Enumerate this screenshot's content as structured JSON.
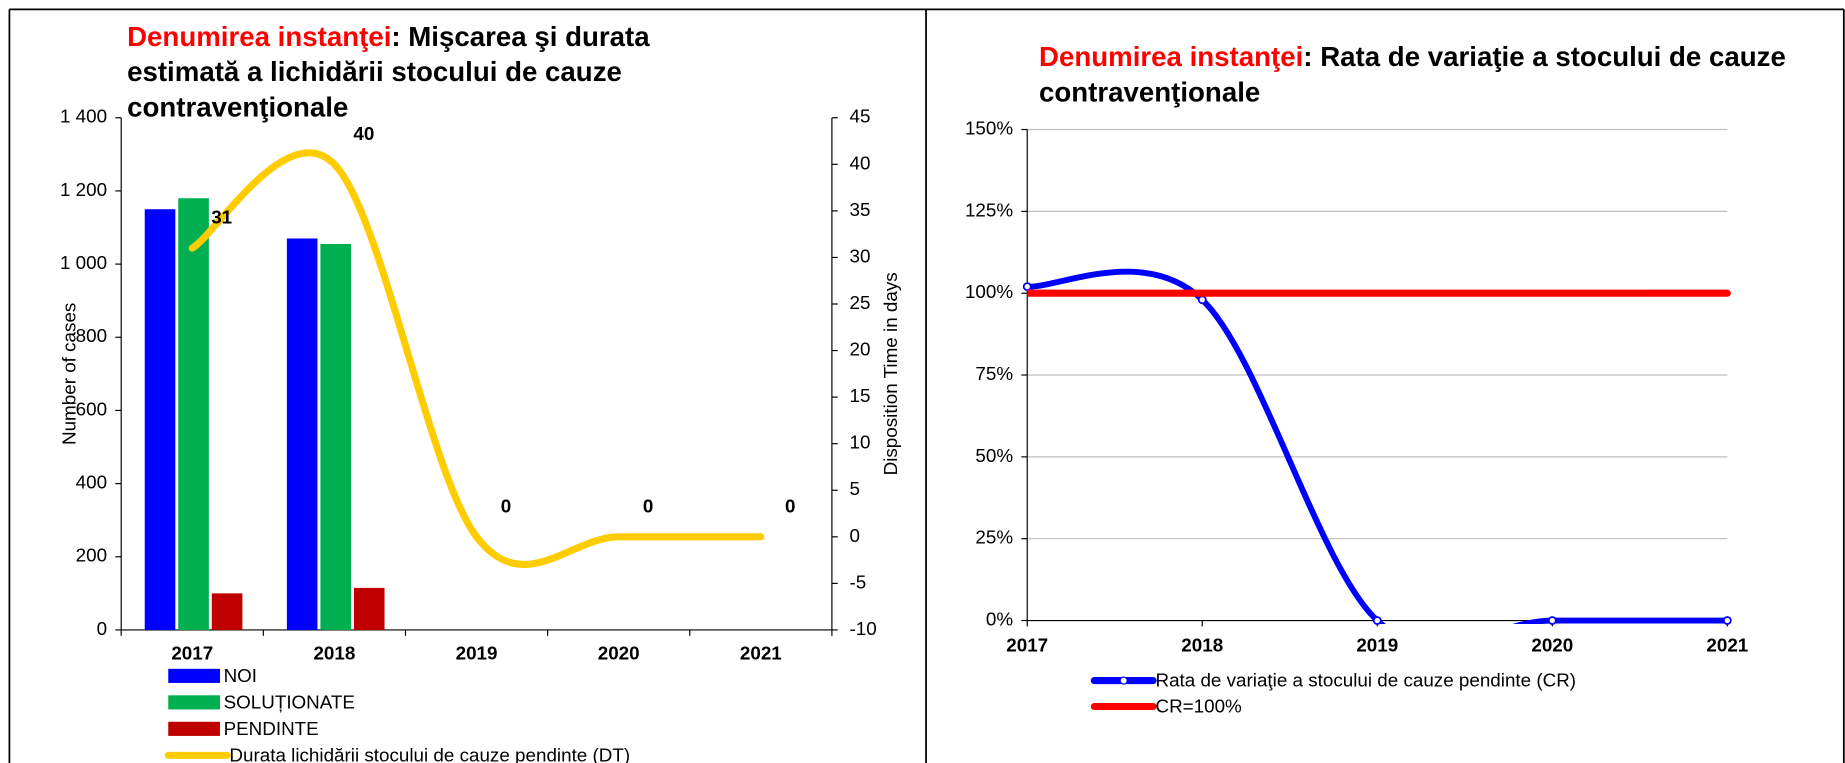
{
  "chart_data": [
    {
      "type": "bar",
      "title_highlight": "Denumirea instanţei",
      "title": ": Mişcarea şi durata estimată a lichidării stocului de cauze contravenţionale",
      "categories": [
        "2017",
        "2018",
        "2019",
        "2020",
        "2021"
      ],
      "series": [
        {
          "name": "NOI",
          "color": "#0000ff",
          "values": [
            1150,
            1070,
            0,
            0,
            0
          ]
        },
        {
          "name": "SOLUȚIONATE",
          "color": "#00b050",
          "values": [
            1180,
            1055,
            0,
            0,
            0
          ]
        },
        {
          "name": "PENDINTE",
          "color": "#c00000",
          "values": [
            100,
            115,
            0,
            0,
            0
          ]
        },
        {
          "name": "Durata lichidării stocului de cauze pendinte (DT)",
          "color": "#ffcc00",
          "type": "line",
          "axis": "y2",
          "values": [
            31,
            40,
            0,
            0,
            0
          ]
        }
      ],
      "ylabel": "Number of cases",
      "y2label": "Disposition Time in days",
      "ylim": [
        0,
        1400
      ],
      "yticks": [
        0,
        200,
        400,
        600,
        800,
        {
          "value": 1000,
          "label": "1 000"
        },
        {
          "value": 1200,
          "label": "1 200"
        },
        {
          "value": 1400,
          "label": "1 400"
        }
      ],
      "y2lim": [
        -10,
        45
      ],
      "y2ticks": [
        -10,
        -5,
        0,
        5,
        10,
        15,
        20,
        25,
        30,
        35,
        40,
        45
      ],
      "grid": false
    },
    {
      "type": "line",
      "title_highlight": "Denumirea instanţei",
      "title": ": Rata de variaţie a stocului de cauze contravenţionale",
      "categories": [
        "2017",
        "2018",
        "2019",
        "2020",
        "2021"
      ],
      "series": [
        {
          "name": "Rata de variaţie a stocului de cauze pendinte (CR)",
          "color": "#0000ff",
          "values": [
            102,
            98,
            0,
            0,
            0
          ]
        },
        {
          "name": "CR=100%",
          "color": "#ff0000",
          "values": [
            100,
            100,
            100,
            100,
            100
          ]
        }
      ],
      "ylim": [
        0,
        150
      ],
      "yticks": [
        {
          "value": 0,
          "label": "0%"
        },
        {
          "value": 25,
          "label": "25%"
        },
        {
          "value": 50,
          "label": "50%"
        },
        {
          "value": 75,
          "label": "75%"
        },
        {
          "value": 100,
          "label": "100%"
        },
        {
          "value": 125,
          "label": "125%"
        },
        {
          "value": 150,
          "label": "150%"
        }
      ],
      "grid": true
    }
  ]
}
